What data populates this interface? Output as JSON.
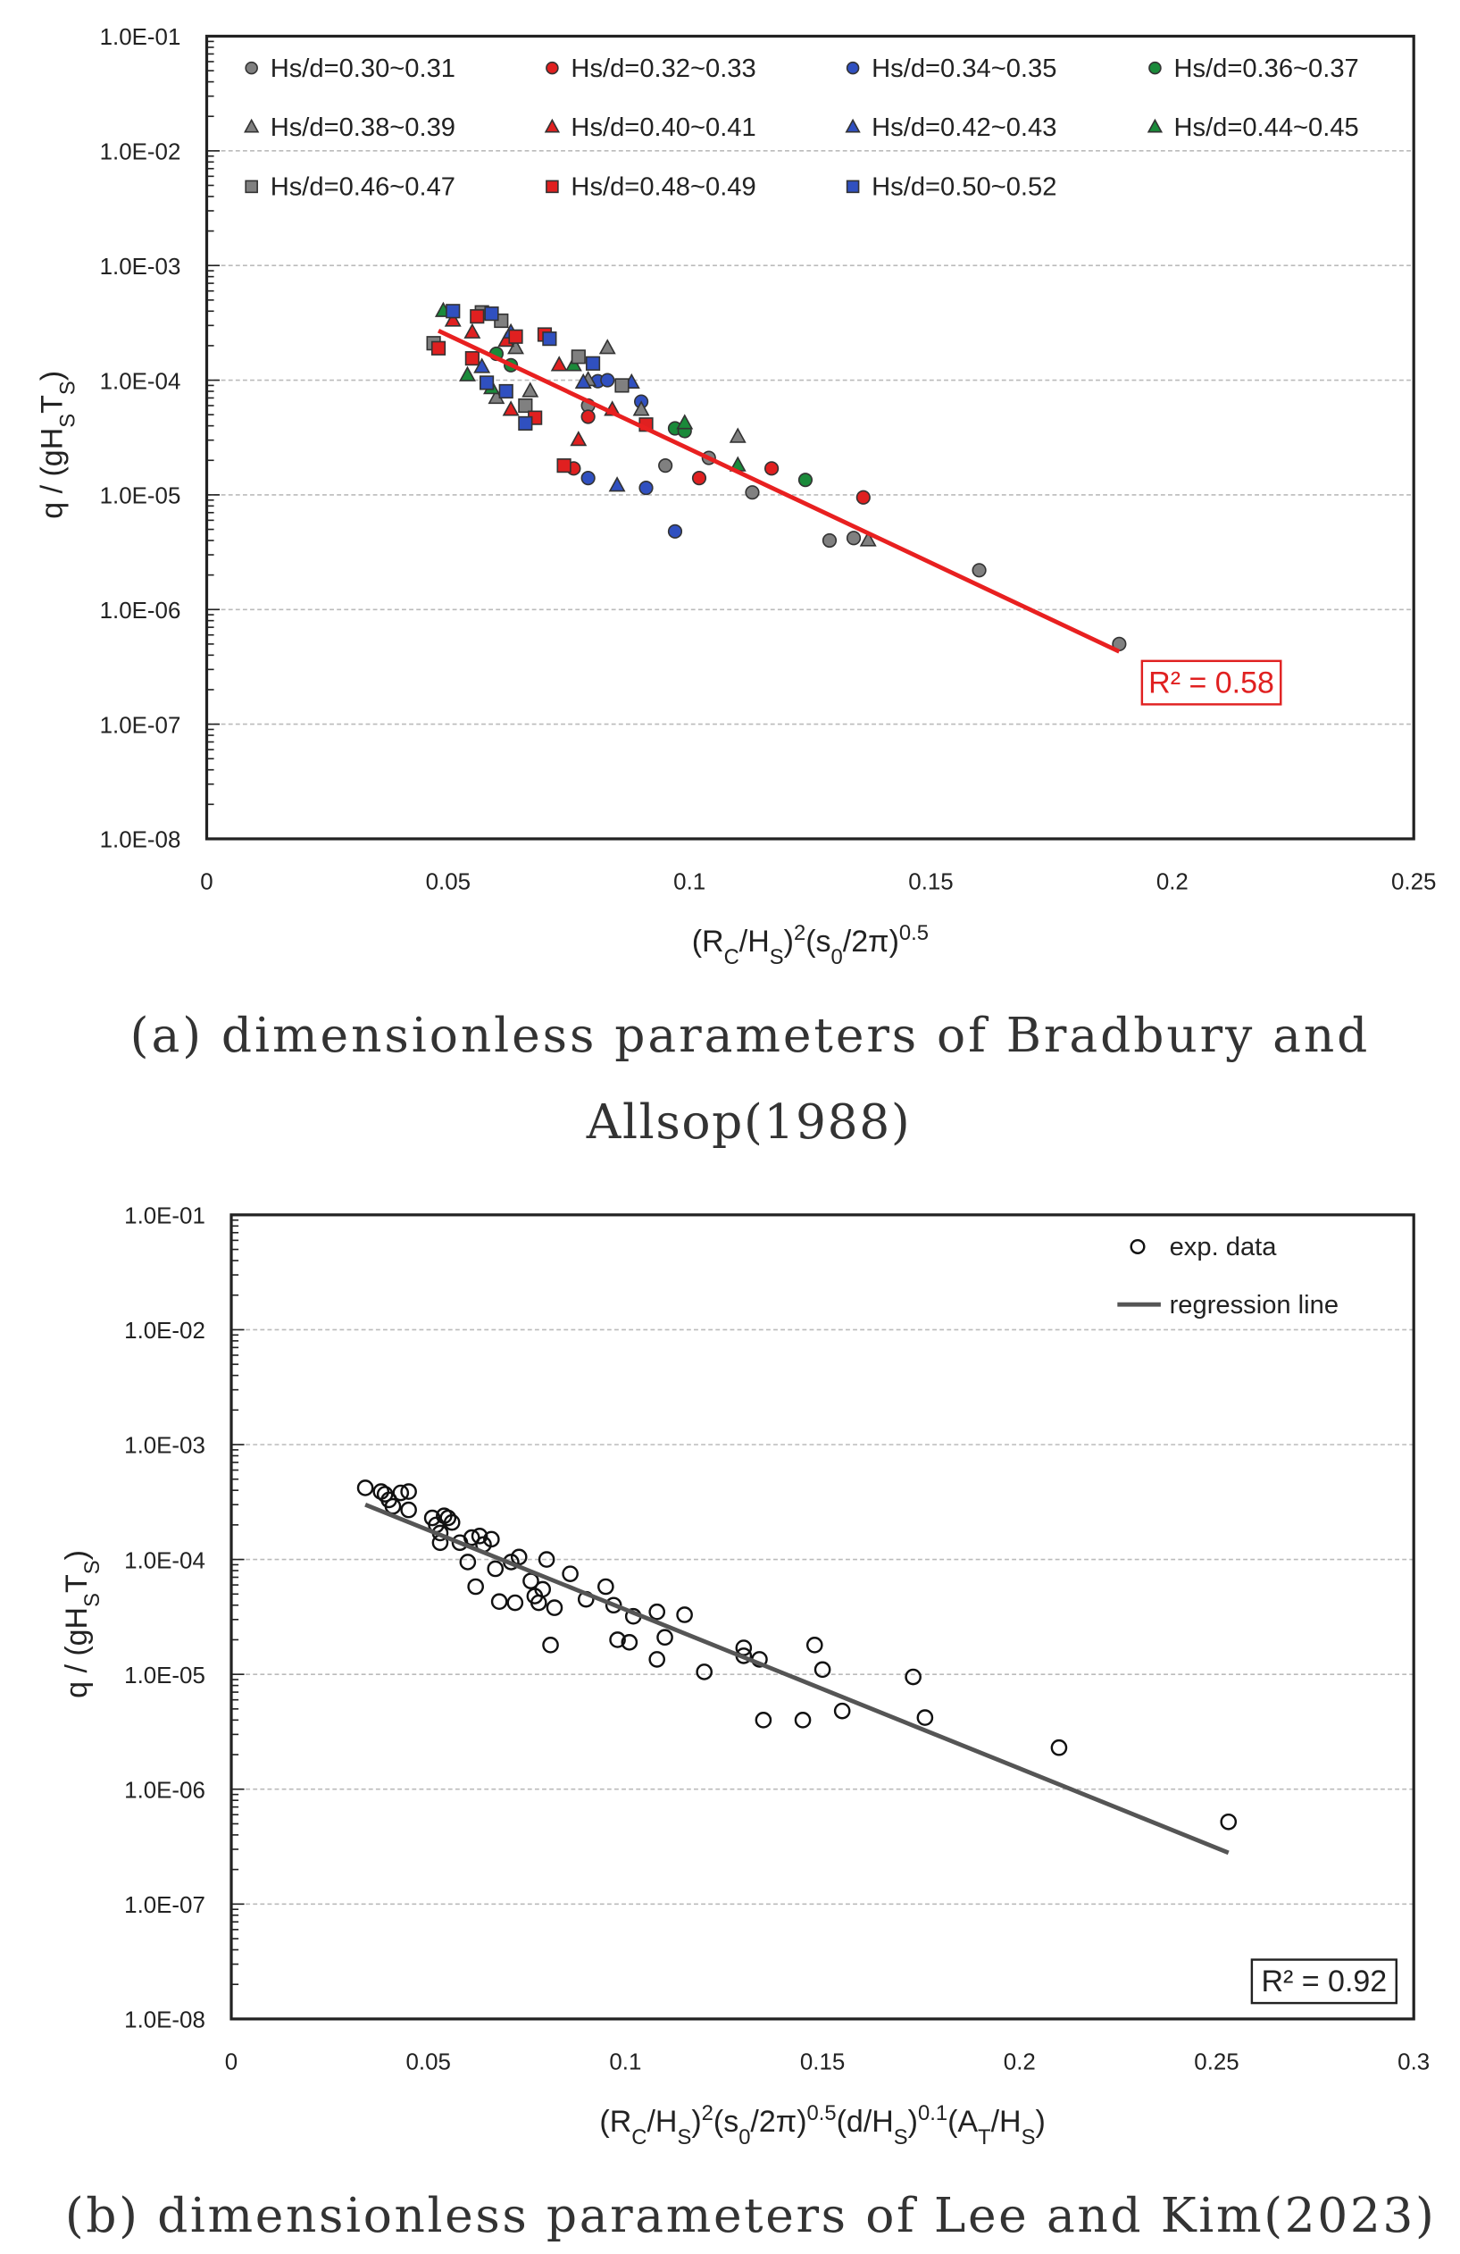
{
  "chart_data": [
    {
      "type": "scatter",
      "yscale": "log",
      "xlim": [
        0,
        0.25
      ],
      "ylim": [
        1e-08,
        0.1
      ],
      "xticks": [
        "0",
        "0.05",
        "0.1",
        "0.15",
        "0.2",
        "0.25"
      ],
      "yticks": [
        "1.0E-08",
        "1.0E-07",
        "1.0E-06",
        "1.0E-05",
        "1.0E-04",
        "1.0E-03",
        "1.0E-02",
        "1.0E-01"
      ],
      "grid": "horizontal dashed at decades",
      "legend_placement": "top",
      "xlabel": [
        {
          "t": "(R"
        },
        {
          "t": "C",
          "s": "sub"
        },
        {
          "t": "/H"
        },
        {
          "t": "S",
          "s": "sub"
        },
        {
          "t": ")"
        },
        {
          "t": "2",
          "s": "sup"
        },
        {
          "t": "(s"
        },
        {
          "t": "0",
          "s": "sub"
        },
        {
          "t": "/2π)"
        },
        {
          "t": "0.5",
          "s": "sup"
        }
      ],
      "ylabel": [
        {
          "t": "q / (gH"
        },
        {
          "t": "S",
          "s": "sub"
        },
        {
          "t": "T"
        },
        {
          "t": "S",
          "s": "sub"
        },
        {
          "t": ")"
        }
      ],
      "annotation": "R² = 0.58",
      "annotation_color": "#e02020",
      "regression": {
        "color": "#e82020",
        "x": [
          0.048,
          0.189
        ],
        "y": [
          0.00027,
          4.3e-07
        ]
      },
      "series": [
        {
          "name": "Hs/d=0.30~0.31",
          "marker": "circle",
          "color": "#808080",
          "x": [
            0.079,
            0.095,
            0.104,
            0.113,
            0.129,
            0.134,
            0.16,
            0.189
          ],
          "y": [
            6e-05,
            1.8e-05,
            2.1e-05,
            1.05e-05,
            4e-06,
            4.2e-06,
            2.2e-06,
            5e-07
          ]
        },
        {
          "name": "Hs/d=0.32~0.33",
          "marker": "circle",
          "color": "#e02020",
          "x": [
            0.079,
            0.076,
            0.102,
            0.117,
            0.136
          ],
          "y": [
            4.8e-05,
            1.7e-05,
            1.4e-05,
            1.7e-05,
            9.5e-06
          ]
        },
        {
          "name": "Hs/d=0.34~0.35",
          "marker": "circle",
          "color": "#3050c0",
          "x": [
            0.079,
            0.081,
            0.083,
            0.09,
            0.091,
            0.097
          ],
          "y": [
            1.4e-05,
            9.8e-05,
            0.0001,
            6.5e-05,
            1.15e-05,
            4.8e-06
          ]
        },
        {
          "name": "Hs/d=0.36~0.37",
          "marker": "circle",
          "color": "#1a8a3a",
          "x": [
            0.06,
            0.063,
            0.097,
            0.099,
            0.124
          ],
          "y": [
            0.00017,
            0.000135,
            3.8e-05,
            3.6e-05,
            1.35e-05
          ]
        },
        {
          "name": "Hs/d=0.38~0.39",
          "marker": "triangle",
          "color": "#808080",
          "x": [
            0.06,
            0.064,
            0.067,
            0.079,
            0.083,
            0.09,
            0.11,
            0.137
          ],
          "y": [
            7e-05,
            0.00019,
            8e-05,
            0.0001,
            0.00019,
            5.5e-05,
            3.2e-05,
            4e-06
          ]
        },
        {
          "name": "Hs/d=0.40~0.41",
          "marker": "triangle",
          "color": "#e02020",
          "x": [
            0.051,
            0.055,
            0.062,
            0.063,
            0.073,
            0.077,
            0.084
          ],
          "y": [
            0.00033,
            0.00026,
            0.00022,
            5.5e-05,
            0.000135,
            3e-05,
            5.5e-05
          ]
        },
        {
          "name": "Hs/d=0.42~0.43",
          "marker": "triangle",
          "color": "#3050c0",
          "x": [
            0.057,
            0.063,
            0.078,
            0.088,
            0.085
          ],
          "y": [
            0.00013,
            0.00026,
            9.5e-05,
            9.5e-05,
            1.2e-05
          ]
        },
        {
          "name": "Hs/d=0.44~0.45",
          "marker": "triangle",
          "color": "#1a8a3a",
          "x": [
            0.049,
            0.054,
            0.059,
            0.076,
            0.099,
            0.11
          ],
          "y": [
            0.0004,
            0.00011,
            8.5e-05,
            0.000135,
            4.2e-05,
            1.8e-05
          ]
        },
        {
          "name": "Hs/d=0.46~0.47",
          "marker": "square",
          "color": "#808080",
          "x": [
            0.047,
            0.057,
            0.061,
            0.066,
            0.077,
            0.086
          ],
          "y": [
            0.00021,
            0.00039,
            0.00033,
            6e-05,
            0.00016,
            9e-05
          ]
        },
        {
          "name": "Hs/d=0.48~0.49",
          "marker": "square",
          "color": "#e02020",
          "x": [
            0.048,
            0.055,
            0.056,
            0.064,
            0.068,
            0.07,
            0.074,
            0.091
          ],
          "y": [
            0.00019,
            0.000155,
            0.00036,
            0.00024,
            4.7e-05,
            0.00025,
            1.8e-05,
            4.1e-05
          ]
        },
        {
          "name": "Hs/d=0.50~0.52",
          "marker": "square",
          "color": "#3050c0",
          "x": [
            0.051,
            0.058,
            0.059,
            0.062,
            0.066,
            0.071,
            0.08
          ],
          "y": [
            0.0004,
            9.5e-05,
            0.00038,
            8e-05,
            4.2e-05,
            0.00023,
            0.00014
          ]
        }
      ]
    },
    {
      "type": "scatter",
      "yscale": "log",
      "xlim": [
        0,
        0.3
      ],
      "ylim": [
        1e-08,
        0.1
      ],
      "xticks": [
        "0",
        "0.05",
        "0.1",
        "0.15",
        "0.2",
        "0.25",
        "0.3"
      ],
      "yticks": [
        "1.0E-08",
        "1.0E-07",
        "1.0E-06",
        "1.0E-05",
        "1.0E-04",
        "1.0E-03",
        "1.0E-02",
        "1.0E-01"
      ],
      "grid": "horizontal dashed at decades",
      "legend_placement": "top-right",
      "xlabel": [
        {
          "t": "(R"
        },
        {
          "t": "C",
          "s": "sub"
        },
        {
          "t": "/H"
        },
        {
          "t": "S",
          "s": "sub"
        },
        {
          "t": ")"
        },
        {
          "t": "2",
          "s": "sup"
        },
        {
          "t": "(s"
        },
        {
          "t": "0",
          "s": "sub"
        },
        {
          "t": "/2π)"
        },
        {
          "t": "0.5",
          "s": "sup"
        },
        {
          "t": "(d/H"
        },
        {
          "t": "S",
          "s": "sub"
        },
        {
          "t": ")"
        },
        {
          "t": "0.1",
          "s": "sup"
        },
        {
          "t": "(A"
        },
        {
          "t": "T",
          "s": "sub"
        },
        {
          "t": "/H"
        },
        {
          "t": "S",
          "s": "sub"
        },
        {
          "t": ")"
        }
      ],
      "ylabel": [
        {
          "t": "q / (gH"
        },
        {
          "t": "S",
          "s": "sub"
        },
        {
          "t": "T"
        },
        {
          "t": "S",
          "s": "sub"
        },
        {
          "t": ")"
        }
      ],
      "annotation": "R² = 0.92",
      "annotation_color": "#222222",
      "regression": {
        "name": "regression line",
        "color": "#555555",
        "x": [
          0.034,
          0.253
        ],
        "y": [
          0.0003,
          2.8e-07
        ]
      },
      "series": [
        {
          "name": "exp. data",
          "marker": "open-circle",
          "color": "#111111",
          "x": [
            0.034,
            0.038,
            0.039,
            0.04,
            0.041,
            0.043,
            0.045,
            0.045,
            0.051,
            0.052,
            0.053,
            0.054,
            0.055,
            0.056,
            0.053,
            0.058,
            0.06,
            0.061,
            0.062,
            0.063,
            0.064,
            0.066,
            0.067,
            0.068,
            0.071,
            0.072,
            0.073,
            0.076,
            0.077,
            0.078,
            0.079,
            0.08,
            0.081,
            0.082,
            0.086,
            0.09,
            0.095,
            0.097,
            0.098,
            0.101,
            0.102,
            0.108,
            0.108,
            0.11,
            0.115,
            0.12,
            0.13,
            0.13,
            0.134,
            0.135,
            0.145,
            0.148,
            0.15,
            0.155,
            0.173,
            0.176,
            0.21,
            0.253
          ],
          "y": [
            0.00042,
            0.00039,
            0.00037,
            0.00033,
            0.00029,
            0.00038,
            0.00039,
            0.00027,
            0.00023,
            0.0002,
            0.00017,
            0.00024,
            0.00023,
            0.00021,
            0.00014,
            0.00014,
            9.5e-05,
            0.000155,
            5.8e-05,
            0.00016,
            0.000135,
            0.00015,
            8.3e-05,
            4.3e-05,
            9.5e-05,
            4.2e-05,
            0.000105,
            6.5e-05,
            4.8e-05,
            4.2e-05,
            5.5e-05,
            0.0001,
            1.8e-05,
            3.8e-05,
            7.5e-05,
            4.5e-05,
            5.8e-05,
            4e-05,
            2e-05,
            1.9e-05,
            3.2e-05,
            3.5e-05,
            1.35e-05,
            2.1e-05,
            3.3e-05,
            1.05e-05,
            1.7e-05,
            1.45e-05,
            1.35e-05,
            4e-06,
            4e-06,
            1.8e-05,
            1.1e-05,
            4.8e-06,
            9.5e-06,
            4.2e-06,
            2.3e-06,
            5.2e-07
          ]
        }
      ]
    }
  ],
  "captions": {
    "a_line1": "(a) dimensionless parameters of Bradbury and",
    "a_line2": "Allsop(1988)",
    "b": "(b) dimensionless parameters of Lee and Kim(2023)"
  }
}
